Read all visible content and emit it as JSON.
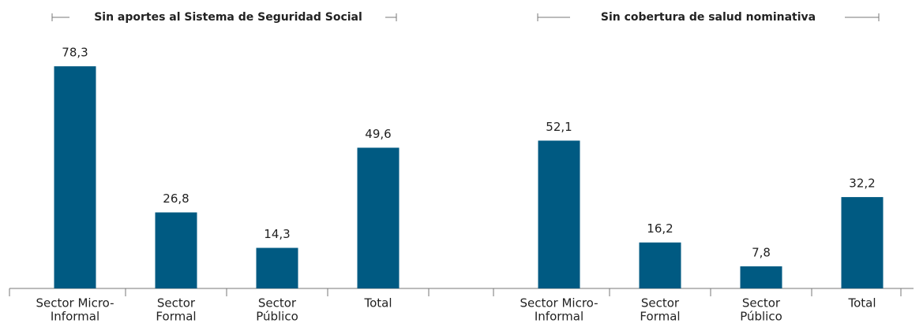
{
  "chart_data": [
    {
      "type": "bar",
      "title": "Sin aportes al Sistema de Seguridad Social",
      "categories": [
        [
          "Sector Micro-",
          "Informal"
        ],
        [
          "Sector",
          "Formal"
        ],
        [
          "Sector",
          "Público"
        ],
        [
          "Total"
        ]
      ],
      "values": [
        78.3,
        26.8,
        14.3,
        49.6
      ],
      "value_labels": [
        "78,3",
        "26,8",
        "14,3",
        "49,6"
      ],
      "color": "#005a82"
    },
    {
      "type": "bar",
      "title": "Sin cobertura de salud nominativa",
      "categories": [
        [
          "Sector Micro-",
          "Informal"
        ],
        [
          "Sector",
          "Formal"
        ],
        [
          "Sector",
          "Público"
        ],
        [
          "Total"
        ]
      ],
      "values": [
        52.1,
        16.2,
        7.8,
        32.2
      ],
      "value_labels": [
        "52,1",
        "16,2",
        "7,8",
        "32,2"
      ],
      "color": "#005a82"
    }
  ]
}
